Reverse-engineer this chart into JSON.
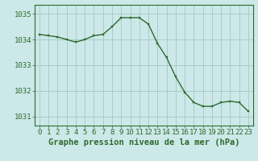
{
  "x": [
    0,
    1,
    2,
    3,
    4,
    5,
    6,
    7,
    8,
    9,
    10,
    11,
    12,
    13,
    14,
    15,
    16,
    17,
    18,
    19,
    20,
    21,
    22,
    23
  ],
  "y": [
    1034.2,
    1034.15,
    1034.1,
    1034.0,
    1033.9,
    1034.0,
    1034.15,
    1034.2,
    1034.5,
    1034.85,
    1034.85,
    1034.85,
    1034.6,
    1033.85,
    1033.3,
    1032.55,
    1031.95,
    1031.55,
    1031.4,
    1031.4,
    1031.55,
    1031.6,
    1031.55,
    1031.2
  ],
  "line_color": "#2d6a2d",
  "marker_color": "#2d6a2d",
  "bg_color": "#cce8e8",
  "grid_color": "#aacccc",
  "axis_color": "#2d6a2d",
  "xlabel": "Graphe pression niveau de la mer (hPa)",
  "xlabel_color": "#2d6a2d",
  "ylabel_ticks": [
    1031,
    1032,
    1033,
    1034,
    1035
  ],
  "xlim": [
    -0.5,
    23.5
  ],
  "ylim": [
    1030.65,
    1035.35
  ],
  "xtick_labels": [
    "0",
    "1",
    "2",
    "3",
    "4",
    "5",
    "6",
    "7",
    "8",
    "9",
    "10",
    "11",
    "12",
    "13",
    "14",
    "15",
    "16",
    "17",
    "18",
    "19",
    "20",
    "21",
    "22",
    "23"
  ],
  "tick_fontsize": 6.5,
  "xlabel_fontsize": 7.5
}
